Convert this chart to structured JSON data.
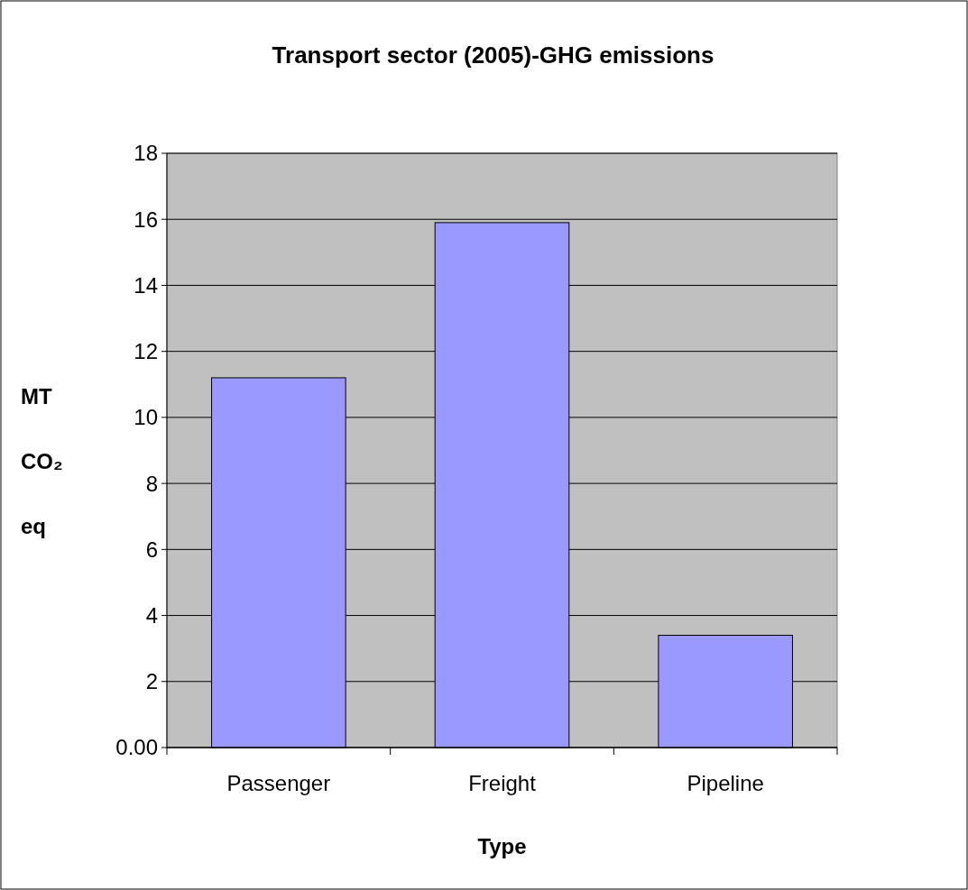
{
  "chart_data": {
    "type": "bar",
    "title": "Transport sector (2005)-GHG emissions",
    "xlabel": "Type",
    "ylabel": "MT CO₂ eq",
    "categories": [
      "Passenger",
      "Freight",
      "Pipeline"
    ],
    "values": [
      11.2,
      15.9,
      3.4
    ],
    "color": "#9999ff",
    "ylim": [
      0,
      18
    ],
    "yticks": [
      {
        "value": 0,
        "label": "0.00"
      },
      2,
      4,
      6,
      8,
      10,
      12,
      14,
      16,
      18
    ],
    "grid": "y"
  }
}
